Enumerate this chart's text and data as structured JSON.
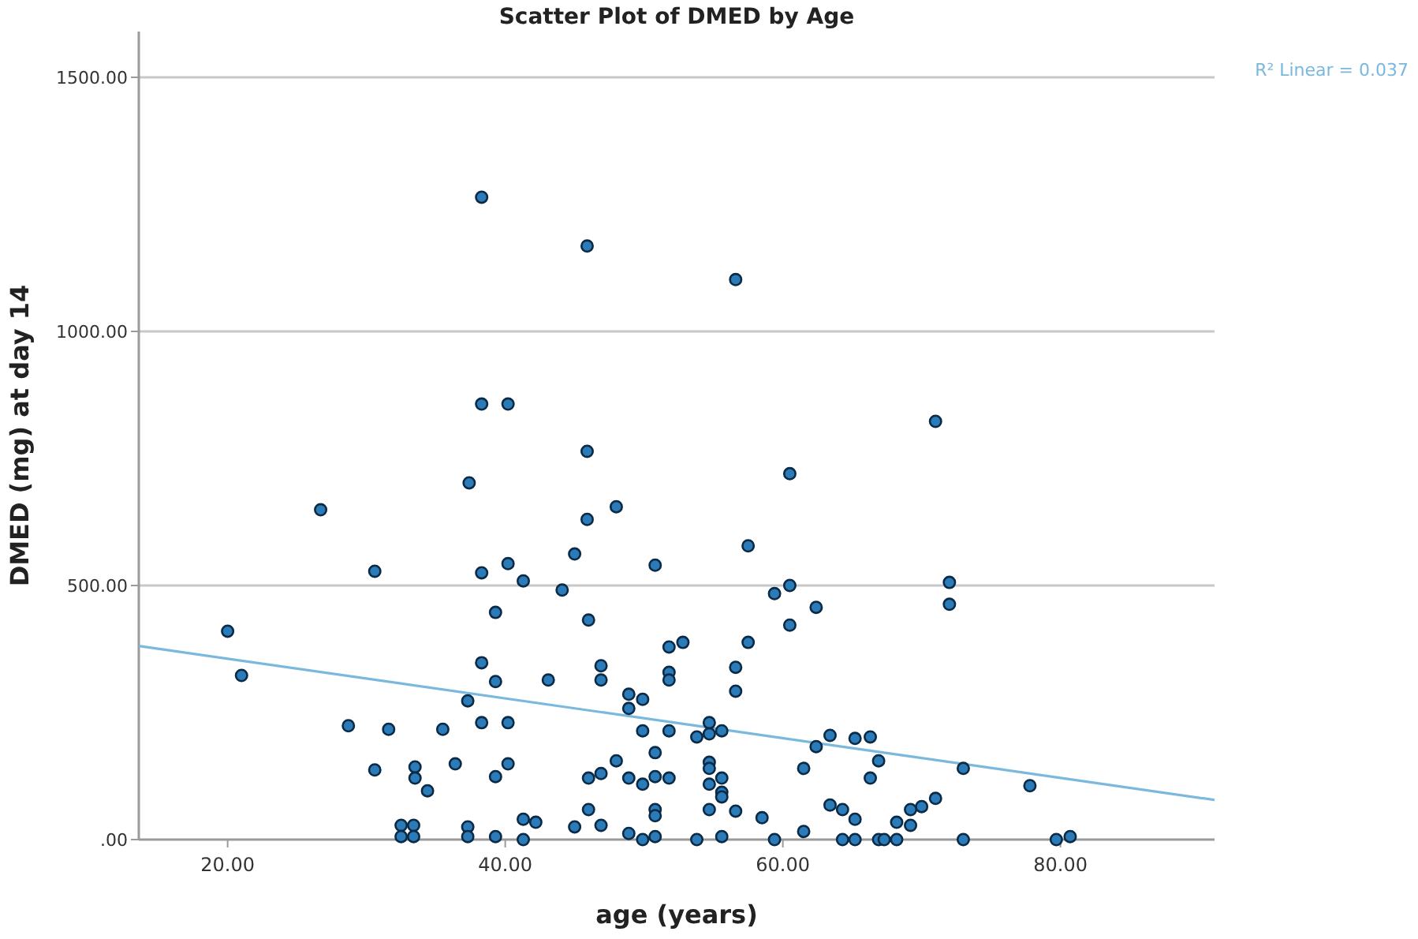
{
  "chart_data": {
    "type": "scatter",
    "title": "Scatter Plot of DMED by Age",
    "xlabel": "age (years)",
    "ylabel": "DMED (mg) at day 14",
    "xlim": [
      13.6,
      91.1
    ],
    "xticks": [
      {
        "value": 20,
        "label": "20.00"
      },
      {
        "value": 40,
        "label": "40.00"
      },
      {
        "value": 60,
        "label": "60.00"
      },
      {
        "value": 80,
        "label": "80.00"
      }
    ],
    "ylim": [
      0,
      1590
    ],
    "yticks": [
      {
        "value": 0,
        "label": ".00"
      },
      {
        "value": 500,
        "label": "500.00"
      },
      {
        "value": 1000,
        "label": "1000.00"
      },
      {
        "value": 1500,
        "label": "1500.00"
      }
    ],
    "grid": "y",
    "annotations": [
      "R² Linear = 0.037"
    ],
    "series": [
      {
        "marker": "circle",
        "color": "#2b7bb9",
        "x": [
          20.0,
          21.0,
          26.7,
          28.7,
          31.6,
          30.6,
          35.5,
          33.5,
          33.5,
          34.4,
          36.4,
          30.6,
          37.3,
          38.3,
          39.3,
          38.3,
          40.2,
          40.2,
          39.3,
          39.3,
          38.3,
          40.2,
          32.5,
          33.4,
          32.5,
          33.4,
          37.3,
          37.3,
          39.3,
          38.3,
          45.9,
          38.3,
          40.2,
          45.9,
          37.4,
          48.0,
          45.9,
          56.6,
          71.0,
          60.5,
          41.3,
          45.0,
          44.1,
          50.8,
          46.0,
          57.5,
          59.4,
          60.5,
          60.5,
          62.4,
          51.8,
          52.8,
          57.5,
          56.6,
          56.6,
          43.1,
          46.9,
          46.9,
          51.8,
          51.8,
          48.9,
          49.9,
          48.9,
          49.9,
          51.8,
          54.7,
          53.8,
          54.7,
          55.6,
          46.0,
          46.9,
          48.0,
          48.9,
          49.9,
          50.8,
          50.8,
          51.8,
          54.7,
          54.7,
          54.7,
          55.6,
          55.6,
          55.6,
          54.7,
          56.6,
          58.5,
          41.3,
          42.2,
          45.0,
          46.0,
          46.9,
          48.9,
          50.8,
          50.8,
          41.3,
          49.9,
          50.8,
          53.8,
          55.6,
          59.4,
          61.5,
          61.5,
          62.4,
          63.4,
          63.4,
          64.3,
          65.2,
          66.3,
          66.3,
          66.9,
          65.2,
          64.3,
          65.2,
          66.9,
          72.0,
          72.0,
          73.0,
          77.8,
          71.0,
          70.0,
          69.2,
          68.2,
          69.2,
          67.3,
          68.2,
          73.0,
          79.7,
          80.7
        ],
        "values": [
          410,
          323,
          649,
          224,
          217,
          137,
          217,
          143,
          121,
          96,
          149,
          528,
          273,
          348,
          311,
          230,
          230,
          149,
          124,
          447,
          525,
          543,
          28,
          28,
          6,
          6,
          25,
          6,
          6,
          1264,
          1168,
          857,
          857,
          764,
          702,
          655,
          630,
          1102,
          823,
          720,
          509,
          562,
          491,
          540,
          432,
          578,
          484,
          500,
          422,
          457,
          379,
          388,
          388,
          339,
          292,
          314,
          342,
          314,
          329,
          314,
          286,
          276,
          258,
          214,
          214,
          230,
          202,
          208,
          214,
          121,
          130,
          155,
          121,
          109,
          171,
          124,
          121,
          152,
          140,
          109,
          121,
          93,
          84,
          59,
          56,
          43,
          40,
          34,
          25,
          59,
          28,
          12,
          59,
          47,
          0,
          0,
          6,
          0,
          6,
          0,
          16,
          140,
          183,
          205,
          68,
          59,
          199,
          202,
          121,
          155,
          40,
          0,
          0,
          0,
          506,
          463,
          140,
          106,
          81,
          65,
          59,
          34,
          28,
          0,
          0,
          0,
          0,
          6
        ]
      },
      {
        "type": "line",
        "marker": "none",
        "color": "#7ab8de",
        "x": [
          13.6,
          91.1
        ],
        "values": [
          381,
          78
        ]
      }
    ]
  }
}
